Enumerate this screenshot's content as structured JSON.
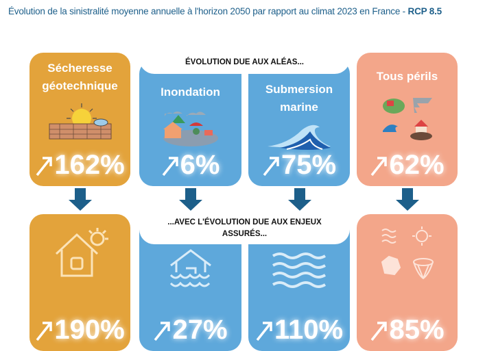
{
  "title": {
    "main": "Évolution de la sinistralité moyenne annuelle à l'horizon 2050 par rapport au climat 2023 en France - ",
    "scenario": "RCP 8.5"
  },
  "captions": {
    "top": "ÉVOLUTION DUE AUX ALÉAS...",
    "bottom": "...AVEC L'ÉVOLUTION DUE AUX ENJEUX ASSURÉS..."
  },
  "colors": {
    "secheresse": "#e3a33b",
    "inondation": "#5ea8db",
    "submersion": "#5ea8db",
    "tous_perils": "#f3a68a",
    "arrow": "#1d5f8a",
    "title": "#1d5f8a"
  },
  "columns": [
    {
      "name": "Sécheresse géotechnique",
      "alea": "162%",
      "enjeux": "190%",
      "icon_top": "drought-icon",
      "icon_bottom": "hot-house-icon"
    },
    {
      "name": "Inondation",
      "alea": "6%",
      "enjeux": "27%",
      "icon_top": "flood-icon",
      "icon_bottom": "flooded-house-icon"
    },
    {
      "name": "Submersion marine",
      "alea": "75%",
      "enjeux": "110%",
      "icon_top": "wave-icon",
      "icon_bottom": "waves-icon"
    },
    {
      "name": "Tous périls",
      "alea": "62%",
      "enjeux": "85%",
      "icon_top": "all-perils-icon",
      "icon_bottom": "perils-outline-icon"
    }
  ]
}
